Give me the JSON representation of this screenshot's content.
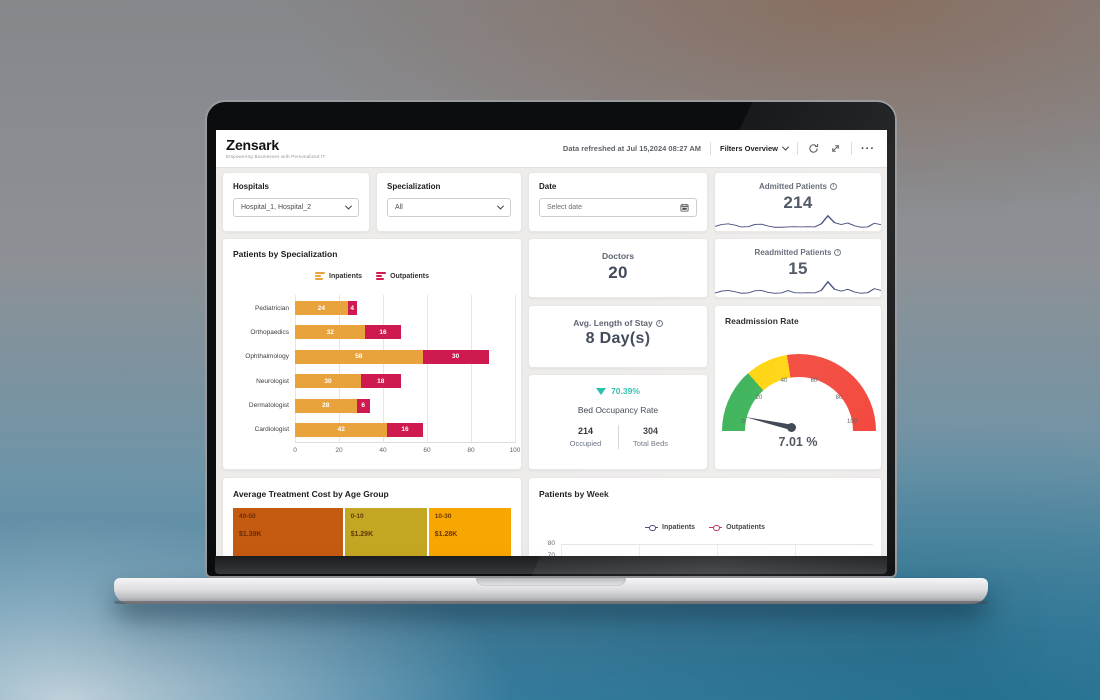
{
  "brand": {
    "mark": "Z",
    "name": "ensark",
    "tagline": "Empowering Businesses with Personalized IT"
  },
  "topbar": {
    "refreshed": "Data refreshed at Jul 15,2024 08:27 AM",
    "filters_overview": "Filters Overview",
    "more_icon": "···"
  },
  "filters": {
    "hospitals": {
      "label": "Hospitals",
      "value": "Hospital_1, Hospital_2"
    },
    "specialization": {
      "label": "Specialization",
      "value": "All"
    },
    "date": {
      "label": "Date",
      "placeholder": "Select date"
    }
  },
  "kpis": {
    "admitted": {
      "title": "Admitted Patients",
      "value": "214"
    },
    "readmitted": {
      "title": "Readmitted Patients",
      "value": "15"
    },
    "doctors": {
      "title": "Doctors",
      "value": "20"
    },
    "avg_los": {
      "title": "Avg. Length of Stay",
      "value": "8 Day(s)"
    },
    "bed_occupancy": {
      "pct": "70.39%",
      "title": "Bed Occupancy Rate",
      "occupied": "214",
      "occupied_label": "Occupied",
      "total": "304",
      "total_label": "Total Beds"
    }
  },
  "colors": {
    "amber": "#E8A33D",
    "crimson": "#CE1A4E",
    "teal": "#2BBFAE",
    "navy": "#3A4173",
    "week_crimson": "#C2185B",
    "gauge_green": "#2FAE4E",
    "gauge_yellow": "#FFD100",
    "gauge_red": "#F23C30",
    "number_slate": "#424B5A"
  },
  "chart_data": [
    {
      "id": "patients_by_specialization",
      "type": "bar",
      "orientation": "horizontal",
      "stacked": true,
      "title": "Patients by Specialization",
      "categories": [
        "Pediatrician",
        "Orthopaedics",
        "Ophthalmology",
        "Neurologist",
        "Dermatologist",
        "Cardiologist"
      ],
      "series": [
        {
          "name": "Inpatients",
          "color": "#E8A33D",
          "values": [
            24,
            32,
            58,
            30,
            28,
            42
          ]
        },
        {
          "name": "Outpatients",
          "color": "#CE1A4E",
          "values": [
            4,
            16,
            30,
            18,
            6,
            16
          ]
        }
      ],
      "xlim": [
        0,
        100
      ],
      "x_ticks": [
        "0",
        "20",
        "40",
        "60",
        "80",
        "100"
      ],
      "grid": "vertical",
      "legend_position": "top"
    },
    {
      "id": "readmission_rate_gauge",
      "type": "gauge",
      "title": "Readmission Rate",
      "value": 7.01,
      "value_label": "7.01 %",
      "min": 0,
      "max": 100,
      "ticks": [
        "0",
        "20",
        "40",
        "60",
        "80",
        "100"
      ],
      "zones": [
        {
          "to": 27,
          "color": "#2FAE4E"
        },
        {
          "to": 45,
          "color": "#FFD100"
        },
        {
          "to": 100,
          "color": "#F23C30"
        }
      ]
    },
    {
      "id": "avg_treatment_cost_by_age_group",
      "type": "treemap",
      "title": "Average Treatment Cost by Age Group",
      "tiles": [
        {
          "label": "40-50",
          "value_label": "$1.39K",
          "value": 1.39,
          "width_pct": 40,
          "color": "#C55A11"
        },
        {
          "label": "0-10",
          "value_label": "$1.29K",
          "value": 1.29,
          "width_pct": 30,
          "color": "#C3A722"
        },
        {
          "label": "10-30",
          "value_label": "$1.28K",
          "value": 1.28,
          "width_pct": 30,
          "color": "#F8A602"
        }
      ]
    },
    {
      "id": "patients_by_week",
      "type": "line",
      "title": "Patients by Week",
      "series": [
        {
          "name": "Inpatients",
          "color": "#3A4173"
        },
        {
          "name": "Outpatients",
          "color": "#C2185B"
        }
      ],
      "y_ticks_visible": [
        "80",
        "70"
      ],
      "note": "plot clipped by screen edge"
    },
    {
      "id": "kpi_sparklines",
      "type": "line",
      "series": [
        {
          "name": "Admitted Patients trend",
          "color": "#3A4173",
          "values": [
            0.15,
            0.3,
            0.35,
            0.25,
            0.1,
            0.12,
            0.3,
            0.32,
            0.18,
            0.08,
            0.08,
            0.1,
            0.12,
            0.1,
            0.12,
            0.1,
            0.35,
            1.0,
            0.45,
            0.3,
            0.42,
            0.2,
            0.08,
            0.1,
            0.4,
            0.28
          ]
        },
        {
          "name": "Readmitted Patients trend",
          "color": "#3A4173",
          "values": [
            0.1,
            0.25,
            0.3,
            0.2,
            0.08,
            0.1,
            0.28,
            0.3,
            0.15,
            0.08,
            0.1,
            0.3,
            0.12,
            0.1,
            0.12,
            0.1,
            0.3,
            1.0,
            0.4,
            0.25,
            0.4,
            0.18,
            0.08,
            0.12,
            0.45,
            0.3
          ]
        }
      ]
    }
  ]
}
